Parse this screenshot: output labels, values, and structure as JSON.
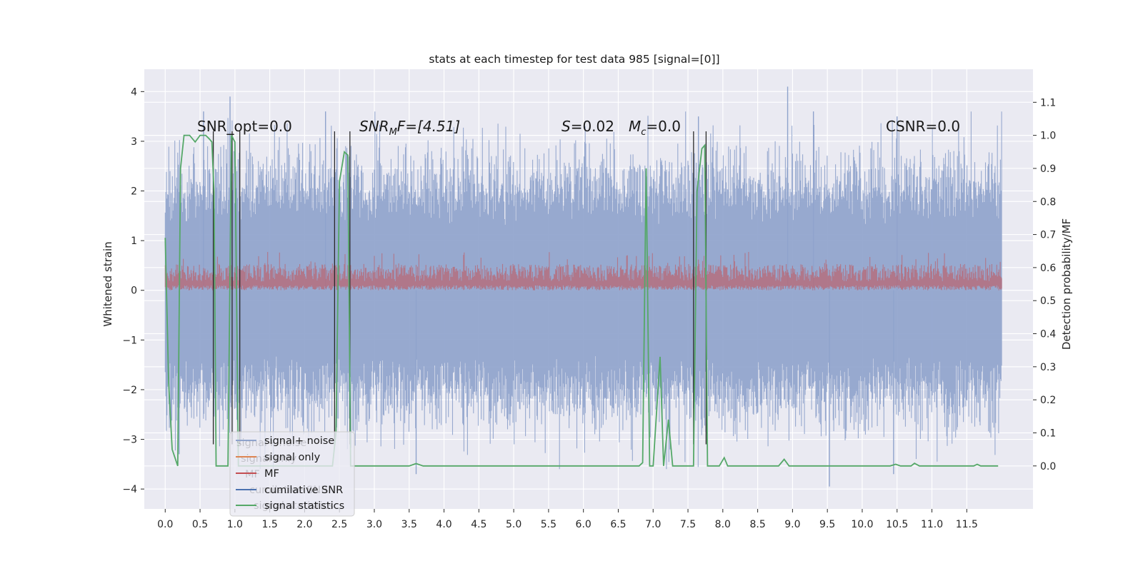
{
  "chart_data": {
    "type": "line",
    "title": "stats at each timestep for test data 985 [signal=[0]]",
    "xlabel": "",
    "ylabel": "Whitened strain",
    "y2label": "Detection probability/MF",
    "xlim": [
      -0.3,
      12.45
    ],
    "ylim": [
      -4.4,
      4.45
    ],
    "y2lim": [
      -0.13,
      1.2
    ],
    "xticks": [
      "0.0",
      "0.5",
      "1.0",
      "1.5",
      "2.0",
      "2.5",
      "3.0",
      "3.5",
      "4.0",
      "4.5",
      "5.0",
      "5.5",
      "6.0",
      "6.5",
      "7.0",
      "7.5",
      "8.0",
      "8.5",
      "9.0",
      "9.5",
      "10.0",
      "10.5",
      "11.0",
      "11.5"
    ],
    "yticks": [
      "4",
      "3",
      "2",
      "1",
      "0",
      "−1",
      "−2",
      "−3",
      "−4"
    ],
    "y2ticks": [
      "1.1",
      "1.0",
      "0.9",
      "0.8",
      "0.7",
      "0.6",
      "0.5",
      "0.4",
      "0.3",
      "0.2",
      "0.1",
      "0.0"
    ],
    "grid": true,
    "legend_position": "lower-left",
    "background": "#eaeaf2",
    "colors": {
      "signal_noise": "#8fa3cc",
      "signal_only_orange": "#dd8452",
      "mf": "#c44e52",
      "cumulative_snr": "#4c72b0",
      "signal_statistics": "#55a868",
      "vlines": "#2a2a2a"
    },
    "annotations": {
      "snr_opt": "SNR_opt=0.0",
      "snr_mf_prefix": "SNR",
      "snr_mf_sub": "M",
      "snr_mf_suffix": "F=[4.51]",
      "s_prefix": "S",
      "s_value": "=0.02",
      "mc_prefix": "M",
      "mc_sub": "c",
      "mc_value": "=0.0",
      "csnr": "CSNR=0.0"
    },
    "legend": [
      {
        "label": "signal+ noise",
        "color": "#8fa3cc"
      },
      {
        "label": "signal only",
        "color": "#dd8452"
      },
      {
        "label": "MF",
        "color": "#c44e52"
      },
      {
        "label": "cumilative SNR",
        "color": "#4c72b0"
      },
      {
        "label": "signal statistics",
        "color": "#55a868"
      }
    ],
    "legend_ghost": [
      "signal+ noise",
      "signal only",
      "MF",
      "cumilative SNR",
      "signal statistics"
    ],
    "series": [
      {
        "name": "signal+ noise",
        "axis": "left",
        "x_range": [
          0.0,
          12.0
        ],
        "typical_range": [
          -2.5,
          2.5
        ],
        "peaks": [
          {
            "x": 0.93,
            "y": 3.9
          },
          {
            "x": 8.93,
            "y": 4.1
          },
          {
            "x": 9.53,
            "y": -3.95
          },
          {
            "x": 3.6,
            "y": -3.7
          },
          {
            "x": 0.2,
            "y": -3.3
          },
          {
            "x": 10.45,
            "y": -3.7
          },
          {
            "x": 0.55,
            "y": 3.6
          },
          {
            "x": 2.3,
            "y": 3.6
          },
          {
            "x": 9.3,
            "y": 3.6
          },
          {
            "x": 7.65,
            "y": 3.5
          },
          {
            "x": 10.5,
            "y": 3.5
          }
        ]
      },
      {
        "name": "MF",
        "axis": "left",
        "x_range": [
          0.0,
          12.0
        ],
        "typical_range": [
          0.0,
          0.7
        ]
      },
      {
        "name": "signal statistics",
        "axis": "right",
        "points": [
          [
            0.0,
            0.69
          ],
          [
            0.05,
            0.25
          ],
          [
            0.1,
            0.05
          ],
          [
            0.18,
            0.0
          ],
          [
            0.22,
            0.9
          ],
          [
            0.27,
            1.0
          ],
          [
            0.3,
            1.0
          ],
          [
            0.35,
            1.0
          ],
          [
            0.43,
            0.98
          ],
          [
            0.5,
            1.0
          ],
          [
            0.58,
            1.0
          ],
          [
            0.63,
            0.99
          ],
          [
            0.67,
            0.98
          ],
          [
            0.7,
            0.83
          ],
          [
            0.73,
            0.0
          ],
          [
            0.9,
            0.0
          ],
          [
            0.95,
            1.0
          ],
          [
            1.0,
            0.98
          ],
          [
            1.05,
            0.0
          ],
          [
            2.4,
            0.0
          ],
          [
            2.45,
            0.1
          ],
          [
            2.5,
            0.86
          ],
          [
            2.57,
            0.95
          ],
          [
            2.62,
            0.94
          ],
          [
            2.66,
            0.0
          ],
          [
            3.5,
            0.0
          ],
          [
            3.6,
            0.007
          ],
          [
            3.7,
            0.0
          ],
          [
            6.8,
            0.0
          ],
          [
            6.85,
            0.01
          ],
          [
            6.9,
            0.9
          ],
          [
            6.95,
            0.0
          ],
          [
            7.0,
            0.0
          ],
          [
            7.1,
            0.33
          ],
          [
            7.15,
            0.0
          ],
          [
            7.22,
            0.14
          ],
          [
            7.28,
            0.0
          ],
          [
            7.58,
            0.0
          ],
          [
            7.63,
            0.83
          ],
          [
            7.7,
            0.96
          ],
          [
            7.74,
            0.97
          ],
          [
            7.78,
            0.0
          ],
          [
            7.95,
            0.0
          ],
          [
            8.02,
            0.025
          ],
          [
            8.07,
            0.0
          ],
          [
            8.8,
            0.0
          ],
          [
            8.88,
            0.02
          ],
          [
            8.95,
            0.0
          ],
          [
            10.4,
            0.0
          ],
          [
            10.48,
            0.005
          ],
          [
            10.55,
            0.0
          ],
          [
            10.7,
            0.0
          ],
          [
            10.75,
            0.008
          ],
          [
            10.82,
            0.0
          ],
          [
            11.6,
            0.0
          ],
          [
            11.65,
            0.005
          ],
          [
            11.7,
            0.0
          ],
          [
            11.95,
            0.0
          ]
        ]
      }
    ],
    "vlines_x": [
      0.69,
      0.96,
      1.07,
      2.43,
      2.65,
      7.58,
      7.76
    ],
    "vlines_y_range": [
      -3.1,
      3.2
    ]
  }
}
